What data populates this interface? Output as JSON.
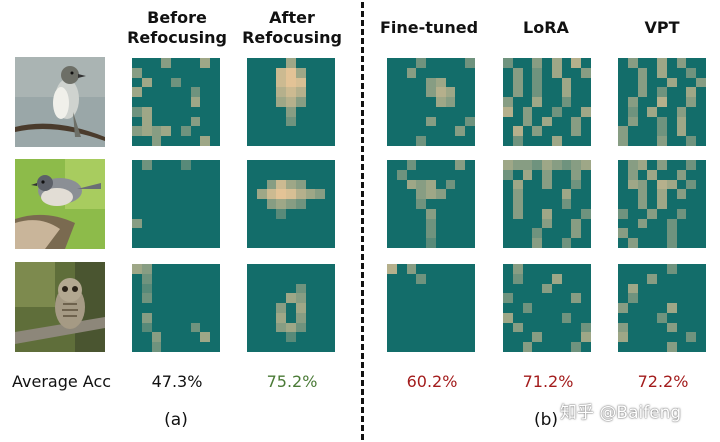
{
  "headers": {
    "before": [
      "Before",
      "Refocusing"
    ],
    "after": [
      "After",
      "Refocusing"
    ],
    "finetuned": "Fine-tuned",
    "lora": "LoRA",
    "vpt": "VPT"
  },
  "rows": [
    {
      "image": "flycatcher-bird-photo"
    },
    {
      "image": "titmouse-bird-photo"
    },
    {
      "image": "barred-owl-photo"
    }
  ],
  "average_acc": {
    "label": "Average Acc",
    "before": "47.3%",
    "after": "75.2%",
    "finetuned": "60.2%",
    "lora": "71.2%",
    "vpt": "72.2%"
  },
  "subcaptions": {
    "a": "(a)",
    "b": "(b)"
  },
  "watermark": "知乎 @Baifeng",
  "colors": {
    "heat_bg": "#136d6a",
    "after_acc": "#4a7a36",
    "compare_acc": "#a31c1c"
  }
}
